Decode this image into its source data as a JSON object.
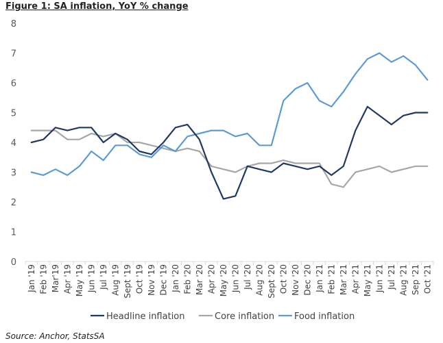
{
  "figure": {
    "title": "Figure 1: SA inflation, YoY % change",
    "source": "Source: Anchor, StatsSA"
  },
  "chart_data": {
    "type": "line",
    "title": "",
    "xlabel": "",
    "ylabel": "",
    "ylim": [
      0,
      8
    ],
    "yticks": [
      "0",
      "1",
      "2",
      "3",
      "4",
      "5",
      "6",
      "7",
      "8"
    ],
    "grid": false,
    "legend_position": "bottom",
    "categories": [
      "Jan '19",
      "Feb '19",
      "Mar'19",
      "Apr '19",
      "May '19",
      "Jun '19",
      "Jul '19",
      "Aug '19",
      "Sept '19",
      "Oct '19",
      "Nov '19",
      "Dec '19",
      "Jan '20",
      "Feb '20",
      "Mar '20",
      "Apr '20",
      "May '20",
      "Jun '20",
      "Jul '20",
      "Aug '20",
      "Sept '20",
      "Oct '20",
      "Nov '20",
      "Dec '20",
      "Jan '21",
      "Feb '21",
      "Mar '21",
      "Apr '21",
      "May '21",
      "Jun '21",
      "Jul '21",
      "Aug '21",
      "Sep '21",
      "Oct '21"
    ],
    "series": [
      {
        "name": "Headline inflation",
        "color": "#1f3864",
        "values": [
          4.0,
          4.1,
          4.5,
          4.4,
          4.5,
          4.5,
          4.0,
          4.3,
          4.1,
          3.7,
          3.6,
          4.0,
          4.5,
          4.6,
          4.1,
          3.0,
          2.1,
          2.2,
          3.2,
          3.1,
          3.0,
          3.3,
          3.2,
          3.1,
          3.2,
          2.9,
          3.2,
          4.4,
          5.2,
          4.9,
          4.6,
          4.9,
          5.0,
          5.0
        ]
      },
      {
        "name": "Core inflation",
        "color": "#a6a6a6",
        "values": [
          4.4,
          4.4,
          4.4,
          4.1,
          4.1,
          4.3,
          4.2,
          4.3,
          4.0,
          4.0,
          3.9,
          3.8,
          3.7,
          3.8,
          3.7,
          3.2,
          3.1,
          3.0,
          3.2,
          3.3,
          3.3,
          3.4,
          3.3,
          3.3,
          3.3,
          2.6,
          2.5,
          3.0,
          3.1,
          3.2,
          3.0,
          3.1,
          3.2,
          3.2
        ]
      },
      {
        "name": "Food inflation",
        "color": "#5b9bd5",
        "values": [
          3.0,
          2.9,
          3.1,
          2.9,
          3.2,
          3.7,
          3.4,
          3.9,
          3.9,
          3.6,
          3.5,
          3.9,
          3.7,
          4.2,
          4.3,
          4.4,
          4.4,
          4.2,
          4.3,
          3.9,
          3.9,
          5.4,
          5.8,
          6.0,
          5.4,
          5.2,
          5.7,
          6.3,
          6.8,
          7.0,
          6.7,
          6.9,
          6.6,
          6.1
        ]
      }
    ]
  }
}
